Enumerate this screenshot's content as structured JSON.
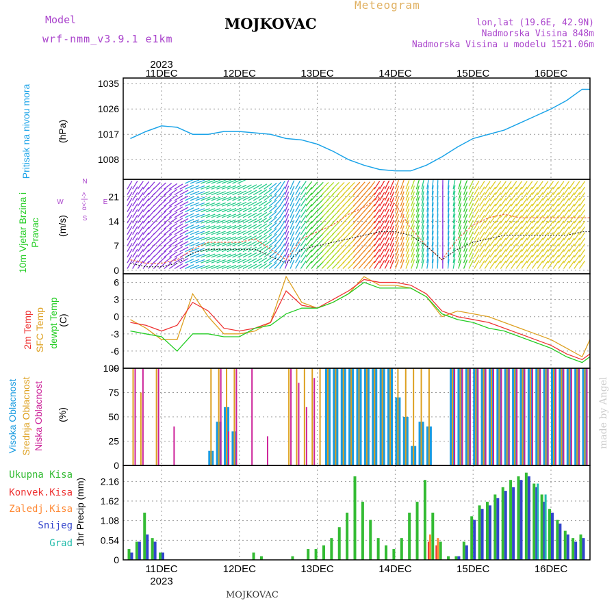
{
  "header": {
    "model_label": "Model",
    "model_name": "wrf-nmm_v3.9.1 e1km",
    "station": "MOJKOVAC",
    "product": "Meteogram",
    "lonlat": "lon,lat (19.6E, 42.9N)",
    "altitude": "Nadmorska Visina 848m",
    "model_altitude": "Nadmorska Visina u modelu 1521.06m"
  },
  "footer": {
    "station": "MOJKOVAC",
    "credit": "made by Angel"
  },
  "colors": {
    "pressure": "#1aa3e8",
    "temp2m": "#ee3333",
    "sfc": "#dda020",
    "dewpt": "#22cc22",
    "high_cloud": "#1a9be0",
    "mid_cloud": "#dda020",
    "low_cloud": "#cc2299",
    "rain_total": "#33bb33",
    "rain_conv": "#ee3333",
    "freezing": "#ff8833",
    "snow": "#3344cc",
    "graupel": "#22bbaa",
    "model_text": "#aa44cc",
    "meteogram_text": "#e0b060"
  },
  "time_axis": {
    "year": "2023",
    "days": [
      "11DEC",
      "12DEC",
      "13DEC",
      "14DEC",
      "15DEC",
      "16DEC"
    ]
  },
  "chart_data": [
    {
      "type": "line",
      "ylabel": "Pritisak na nivou mora",
      "unit": "(hPa)",
      "yticks": [
        "1008",
        "1017",
        "1026",
        "1035"
      ],
      "ylim": [
        1001,
        1037
      ],
      "x_days": [
        0.6,
        0.8,
        1.0,
        1.2,
        1.4,
        1.6,
        1.8,
        2.0,
        2.2,
        2.4,
        2.6,
        2.8,
        3.0,
        3.2,
        3.4,
        3.6,
        3.8,
        4.0,
        4.2,
        4.4,
        4.6,
        4.8,
        5.0,
        5.2,
        5.4,
        5.6,
        5.8,
        6.0,
        6.2,
        6.4,
        6.5
      ],
      "series": [
        {
          "values": [
            1015.5,
            1018,
            1020,
            1019.5,
            1017,
            1017,
            1018,
            1018,
            1017.5,
            1017,
            1015.5,
            1015,
            1013.5,
            1011,
            1008,
            1006,
            1004.5,
            1004,
            1004,
            1006,
            1009,
            1012.5,
            1015.5,
            1017,
            1018.5,
            1021,
            1023.5,
            1026,
            1029,
            1033,
            1033
          ]
        }
      ]
    },
    {
      "type": "line",
      "ylabel": "10m Vjetar Brzina i Pravac",
      "unit": "(m/s)",
      "yticks": [
        "0",
        "7",
        "14",
        "21"
      ],
      "ylim": [
        -1,
        26
      ],
      "compass": [
        "N",
        "S",
        "E",
        "W"
      ],
      "x_days": [
        0.6,
        0.8,
        1.0,
        1.2,
        1.4,
        1.6,
        1.8,
        2.0,
        2.2,
        2.4,
        2.6,
        2.8,
        3.0,
        3.2,
        3.4,
        3.6,
        3.8,
        4.0,
        4.2,
        4.4,
        4.6,
        4.8,
        5.0,
        5.2,
        5.4,
        5.6,
        5.8,
        6.0,
        6.2,
        6.4,
        6.5
      ],
      "series": [
        {
          "name": "gust",
          "values": [
            3,
            2,
            2,
            3,
            6,
            8,
            8,
            8,
            9,
            6,
            3,
            9,
            11,
            13,
            16,
            18,
            21,
            19,
            12,
            7,
            3,
            9,
            13,
            15,
            16,
            15,
            15,
            15,
            15,
            15,
            15
          ]
        },
        {
          "name": "speed",
          "values": [
            2,
            1,
            1,
            2,
            5,
            6,
            6,
            6,
            6,
            4,
            2,
            6,
            7,
            8,
            9,
            10,
            11,
            11,
            10,
            7,
            3,
            6,
            8,
            9,
            10,
            10,
            10,
            10,
            10,
            11,
            11
          ]
        }
      ],
      "wind_dir": [
        210,
        220,
        230,
        240,
        250,
        250,
        250,
        245,
        240,
        230,
        200,
        215,
        225,
        225,
        225,
        220,
        210,
        200,
        200,
        190,
        180,
        195,
        210,
        215,
        215,
        215,
        215,
        215,
        215,
        215,
        215
      ]
    },
    {
      "type": "line",
      "unit": "(C)",
      "ylabels": [
        "2m Temp",
        "SFC Temp",
        "dewpt Temp"
      ],
      "yticks": [
        "-9",
        "-6",
        "-3",
        "0",
        "3",
        "6"
      ],
      "ylim": [
        -9,
        7.5
      ],
      "x_days": [
        0.6,
        0.8,
        1.0,
        1.2,
        1.4,
        1.6,
        1.8,
        2.0,
        2.2,
        2.4,
        2.6,
        2.8,
        3.0,
        3.2,
        3.4,
        3.6,
        3.8,
        4.0,
        4.2,
        4.4,
        4.6,
        4.8,
        5.0,
        5.2,
        5.4,
        5.6,
        5.8,
        6.0,
        6.2,
        6.4,
        6.5
      ],
      "series": [
        {
          "name": "2m Temp",
          "values": [
            -1,
            -1.5,
            -2.5,
            -1.5,
            2.5,
            1,
            -2,
            -2.5,
            -2,
            -1,
            4.5,
            2,
            1.5,
            3,
            4.5,
            6.5,
            6,
            6,
            5.5,
            4,
            1,
            0,
            -0.5,
            -1,
            -2,
            -3,
            -4,
            -5,
            -6.5,
            -7.5,
            -6.5
          ]
        },
        {
          "name": "SFC Temp",
          "values": [
            -0.5,
            -2,
            -4,
            -4,
            4,
            0,
            -3,
            -3,
            -2.5,
            -1,
            7,
            2.5,
            1.5,
            2.5,
            4,
            7,
            5.5,
            5.5,
            5,
            3.5,
            0,
            1,
            0.5,
            0,
            -1,
            -2,
            -3,
            -4,
            -5.5,
            -7,
            -4
          ]
        },
        {
          "name": "dewpt Temp",
          "values": [
            -2.5,
            -3,
            -3.5,
            -6,
            -3,
            -3,
            -3.5,
            -3.5,
            -2,
            -1.5,
            0.5,
            1.5,
            1.5,
            2.5,
            4,
            6,
            5,
            5,
            5,
            3.5,
            0.5,
            -0.5,
            -1,
            -2,
            -2.5,
            -3.5,
            -4.5,
            -5.5,
            -7,
            -8,
            -7
          ]
        }
      ]
    },
    {
      "type": "bar",
      "unit": "(%)",
      "ylabels": [
        "Visoka Oblacnost",
        "Srednja Oblacnost",
        "Niska Oblacnost"
      ],
      "yticks": [
        "0",
        "25",
        "50",
        "75",
        "100"
      ],
      "ylim": [
        0,
        100
      ],
      "x_days": [
        0.6,
        0.7,
        0.8,
        0.9,
        1.0,
        1.1,
        1.2,
        1.3,
        1.4,
        1.5,
        1.6,
        1.7,
        1.8,
        1.9,
        2.0,
        2.1,
        2.2,
        2.3,
        2.4,
        2.5,
        2.6,
        2.7,
        2.8,
        2.9,
        3.0,
        3.1,
        3.2,
        3.3,
        3.4,
        3.5,
        3.6,
        3.7,
        3.8,
        3.9,
        4.0,
        4.1,
        4.2,
        4.3,
        4.4,
        4.5,
        4.6,
        4.7,
        4.8,
        4.9,
        5.0,
        5.1,
        5.2,
        5.3,
        5.4,
        5.5,
        5.6,
        5.7,
        5.8,
        5.9,
        6.0,
        6.1,
        6.2,
        6.3,
        6.4
      ],
      "series": [
        {
          "name": "Visoka Oblacnost",
          "values": [
            0,
            0,
            0,
            0,
            0,
            0,
            0,
            0,
            0,
            0,
            15,
            45,
            60,
            35,
            0,
            0,
            0,
            0,
            0,
            0,
            0,
            0,
            0,
            0,
            0,
            100,
            100,
            100,
            100,
            100,
            100,
            100,
            100,
            100,
            70,
            50,
            20,
            45,
            40,
            0,
            0,
            100,
            100,
            100,
            100,
            100,
            100,
            100,
            100,
            100,
            100,
            100,
            100,
            100,
            100,
            100,
            100,
            100,
            100
          ]
        },
        {
          "name": "Srednja Oblacnost",
          "values": [
            100,
            75,
            0,
            100,
            0,
            0,
            0,
            0,
            0,
            0,
            100,
            100,
            100,
            100,
            0,
            0,
            0,
            0,
            0,
            0,
            100,
            100,
            100,
            100,
            100,
            100,
            100,
            100,
            100,
            100,
            100,
            100,
            100,
            100,
            100,
            100,
            100,
            100,
            100,
            0,
            0,
            100,
            100,
            100,
            100,
            100,
            100,
            100,
            100,
            100,
            100,
            100,
            100,
            100,
            100,
            100,
            100,
            100,
            100
          ]
        },
        {
          "name": "Niska Oblacnost",
          "values": [
            100,
            100,
            0,
            100,
            0,
            40,
            0,
            0,
            0,
            0,
            0,
            100,
            35,
            100,
            0,
            100,
            0,
            30,
            0,
            0,
            100,
            85,
            60,
            90,
            0,
            0,
            0,
            0,
            0,
            0,
            0,
            0,
            0,
            0,
            0,
            0,
            0,
            0,
            0,
            0,
            0,
            100,
            100,
            100,
            100,
            100,
            100,
            100,
            100,
            100,
            100,
            100,
            100,
            100,
            100,
            100,
            100,
            100,
            100
          ]
        }
      ]
    },
    {
      "type": "bar",
      "ylabel": "1hr Precip (mm)",
      "legend": [
        "Ukupna Kisa",
        "Konvek.Kisa",
        "Zaledj.Kisa",
        "Snijeg",
        "Grad"
      ],
      "yticks": [
        "0",
        "0.54",
        "1.08",
        "1.62",
        "2.16"
      ],
      "ylim": [
        0,
        2.6
      ],
      "x_days": [
        0.6,
        0.7,
        0.8,
        0.9,
        1.0,
        1.1,
        1.2,
        1.3,
        1.4,
        1.5,
        1.6,
        1.7,
        1.8,
        1.9,
        2.0,
        2.1,
        2.2,
        2.3,
        2.4,
        2.5,
        2.6,
        2.7,
        2.8,
        2.9,
        3.0,
        3.1,
        3.2,
        3.3,
        3.4,
        3.5,
        3.6,
        3.7,
        3.8,
        3.9,
        4.0,
        4.1,
        4.2,
        4.3,
        4.4,
        4.5,
        4.6,
        4.7,
        4.8,
        4.9,
        5.0,
        5.1,
        5.2,
        5.3,
        5.4,
        5.5,
        5.6,
        5.7,
        5.8,
        5.9,
        6.0,
        6.1,
        6.2,
        6.3,
        6.4
      ],
      "series": [
        {
          "name": "Ukupna Kisa",
          "values": [
            0.3,
            0.5,
            1.3,
            0.6,
            0.2,
            0,
            0,
            0,
            0,
            0,
            0,
            0,
            0,
            0,
            0,
            0,
            0.2,
            0.1,
            0,
            0,
            0,
            0.1,
            0,
            0.3,
            0.3,
            0.4,
            0.6,
            0.9,
            1.3,
            2.3,
            1.6,
            1.1,
            0.6,
            0.4,
            0.3,
            0.6,
            1.3,
            1.6,
            2.2,
            1.3,
            0.5,
            0.1,
            0.1,
            0.5,
            1.2,
            1.5,
            1.6,
            1.8,
            2.0,
            2.2,
            2.3,
            2.4,
            2.1,
            1.8,
            1.4,
            1.1,
            0.8,
            0.6,
            0.7
          ]
        },
        {
          "name": "Konvek.Kisa",
          "values": [
            0,
            0,
            0,
            0,
            0,
            0,
            0,
            0,
            0,
            0,
            0,
            0,
            0,
            0,
            0,
            0,
            0,
            0,
            0,
            0,
            0,
            0,
            0,
            0,
            0,
            0,
            0,
            0,
            0,
            0,
            0,
            0,
            0,
            0,
            0,
            0,
            0,
            0,
            0.5,
            0.4,
            0,
            0,
            0,
            0,
            0,
            0,
            0,
            0,
            0,
            0,
            0,
            0,
            0,
            0,
            0,
            0,
            0,
            0,
            0
          ]
        },
        {
          "name": "Zaledj.Kisa",
          "values": [
            0,
            0,
            0,
            0,
            0,
            0,
            0,
            0,
            0,
            0,
            0,
            0,
            0,
            0,
            0,
            0,
            0,
            0,
            0,
            0,
            0,
            0,
            0,
            0,
            0,
            0,
            0,
            0,
            0,
            0,
            0,
            0,
            0,
            0,
            0,
            0,
            0,
            0,
            0.7,
            0.6,
            0,
            0,
            0,
            0,
            0,
            0,
            0,
            0,
            0,
            0,
            0,
            0,
            0,
            0,
            0,
            0,
            0,
            0,
            0
          ]
        },
        {
          "name": "Snijeg",
          "values": [
            0.2,
            0.5,
            0.7,
            0.5,
            0.2,
            0,
            0,
            0,
            0,
            0,
            0,
            0,
            0,
            0,
            0,
            0,
            0,
            0,
            0,
            0,
            0,
            0,
            0,
            0,
            0,
            0,
            0,
            0,
            0,
            0,
            0,
            0,
            0,
            0,
            0,
            0,
            0,
            0,
            0,
            0,
            0,
            0,
            0.1,
            0.4,
            1.1,
            1.4,
            1.5,
            1.7,
            1.9,
            2.0,
            2.2,
            2.3,
            2.0,
            1.6,
            1.3,
            1.0,
            0.7,
            0.5,
            0.6
          ]
        },
        {
          "name": "Grad",
          "values": [
            0,
            0,
            0,
            0,
            0,
            0,
            0,
            0,
            0,
            0,
            0,
            0,
            0,
            0,
            0,
            0,
            0,
            0,
            0,
            0,
            0,
            0,
            0,
            0,
            0,
            0,
            0,
            0,
            0,
            0,
            0,
            0,
            0,
            0,
            0,
            0,
            0,
            0,
            0,
            0,
            0,
            0,
            0,
            0,
            0,
            0,
            0,
            0,
            0,
            0,
            0,
            0,
            2.1,
            1.8,
            0,
            0,
            0,
            0,
            0
          ]
        }
      ]
    }
  ]
}
